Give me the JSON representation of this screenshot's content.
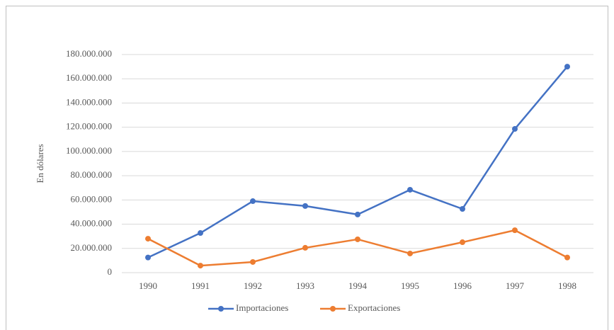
{
  "chart_data": {
    "type": "line",
    "y_label": "En dólares",
    "categories": [
      "1990",
      "1991",
      "1992",
      "1993",
      "1994",
      "1995",
      "1996",
      "1997",
      "1998"
    ],
    "series": [
      {
        "name": "Importaciones",
        "color": "#4472c4",
        "values": [
          12500000,
          32700000,
          59000000,
          55000000,
          48000000,
          68400000,
          52600000,
          118600000,
          170000000
        ]
      },
      {
        "name": "Exportaciones",
        "color": "#ed7d31",
        "values": [
          28000000,
          5800000,
          8800000,
          20500000,
          27500000,
          15800000,
          25100000,
          35000000,
          12500000
        ]
      }
    ],
    "ylim": [
      0,
      180000000
    ],
    "yticks": [
      0,
      {
        "value": 20000000,
        "label": "20.000.000"
      },
      {
        "value": 40000000,
        "label": "40.000.000"
      },
      {
        "value": 60000000,
        "label": "60.000.000"
      },
      {
        "value": 80000000,
        "label": "80.000.000"
      },
      {
        "value": 100000000,
        "label": "100.000.000"
      },
      {
        "value": 120000000,
        "label": "120.000.000"
      },
      {
        "value": 140000000,
        "label": "140.000.000"
      },
      {
        "value": 160000000,
        "label": "160.000.000"
      },
      {
        "value": 180000000,
        "label": "180.000.000"
      }
    ],
    "grid": true,
    "legend": "bottom"
  }
}
